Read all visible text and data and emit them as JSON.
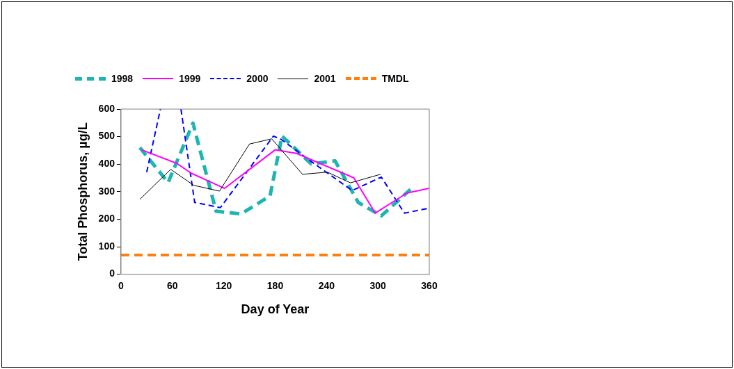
{
  "chart_data": {
    "type": "line",
    "xlabel": "Day of Year",
    "ylabel": "Total Phosphorus, µg/L",
    "xlim": [
      0,
      360
    ],
    "xticks": [
      0,
      60,
      120,
      180,
      240,
      300,
      360
    ],
    "ylim": [
      0,
      600
    ],
    "yticks": [
      0,
      100,
      200,
      300,
      400,
      500,
      600
    ],
    "grid": false,
    "legend": "top",
    "marker": "none",
    "series": [
      {
        "name": "1998",
        "color": "#1cb5b0",
        "line_style": "dashed",
        "x": [
          22,
          55,
          84,
          111,
          140,
          174,
          188,
          222,
          250,
          277,
          304,
          338
        ],
        "values": [
          460,
          333,
          549,
          229,
          219,
          284,
          502,
          401,
          412,
          261,
          212,
          308
        ]
      },
      {
        "name": "1999",
        "color": "#ff00ff",
        "line_style": "solid",
        "x": [
          24,
          65,
          82,
          121,
          180,
          205,
          272,
          297,
          334,
          360
        ],
        "values": [
          452,
          403,
          367,
          312,
          452,
          439,
          350,
          222,
          295,
          312
        ]
      },
      {
        "name": "2000",
        "color": "#0000ff",
        "line_style": "dashed",
        "x": [
          30,
          46,
          58,
          70,
          86,
          116,
          178,
          187,
          226,
          270,
          304,
          331,
          360
        ],
        "values": [
          371,
          600,
          null,
          600,
          261,
          242,
          502,
          490,
          401,
          304,
          353,
          222,
          240
        ]
      },
      {
        "name": "2001",
        "color": "#000000",
        "line_style": "solid",
        "x": [
          22,
          58,
          85,
          115,
          150,
          176,
          212,
          241,
          268,
          303
        ],
        "values": [
          272,
          381,
          323,
          302,
          473,
          492,
          363,
          371,
          332,
          363
        ]
      }
    ],
    "ref_lines": [
      {
        "axis": "y",
        "value": 70,
        "label": "TMDL",
        "color": "#ff7f0e",
        "line_style": "dashed"
      }
    ]
  }
}
